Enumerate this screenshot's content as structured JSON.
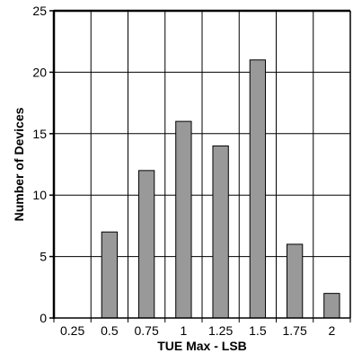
{
  "chart_data": {
    "type": "bar",
    "xlabel": "TUE Max - LSB",
    "ylabel": "Number of Devices",
    "categories": [
      "0.25",
      "0.5",
      "0.75",
      "1",
      "1.25",
      "1.5",
      "1.75",
      "2"
    ],
    "values": [
      0,
      7,
      12,
      16,
      14,
      21,
      6,
      2
    ],
    "ylim": [
      0,
      25
    ],
    "yticks": [
      0,
      5,
      10,
      15,
      20,
      25
    ],
    "grid": true,
    "bar_color": "#999999"
  }
}
